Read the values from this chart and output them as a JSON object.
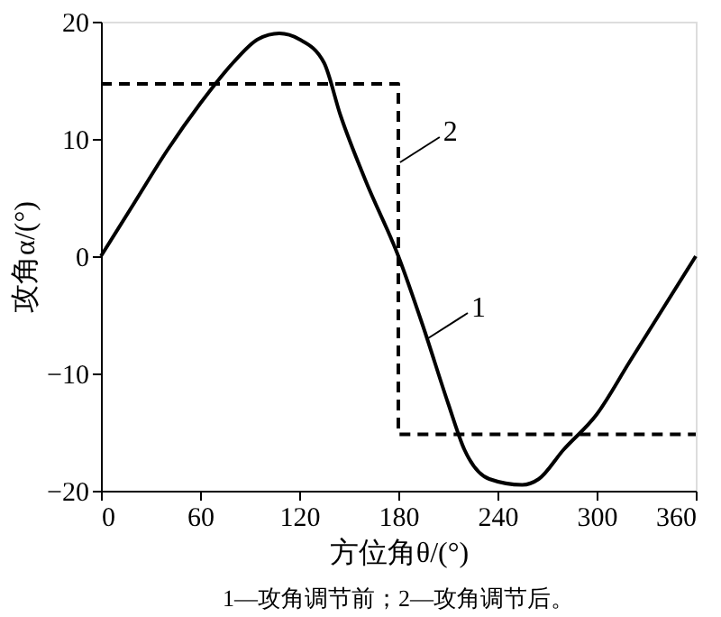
{
  "chart_data": {
    "type": "line",
    "xlabel": "方位角θ/(°)",
    "ylabel": "攻角α/(°)",
    "xlim": [
      0,
      360
    ],
    "xticks": [
      0,
      60,
      120,
      180,
      240,
      300,
      360
    ],
    "ylim": [
      -20,
      20
    ],
    "yticks": [
      -20,
      -10,
      0,
      10,
      20
    ],
    "grid": false,
    "marker": "none",
    "series": [
      {
        "color": "#000000",
        "line_style": "solid",
        "x": [
          0,
          20,
          40,
          60,
          80,
          95,
          108,
          120,
          135,
          145,
          160,
          180,
          195,
          210,
          220,
          235,
          255,
          265,
          280,
          300,
          320,
          340,
          360
        ],
        "values": [
          0,
          4.5,
          9,
          13,
          16.5,
          18.5,
          19,
          18.5,
          16.5,
          12,
          6.5,
          0,
          -6,
          -12.5,
          -16.5,
          -19,
          -19.5,
          -19,
          -16.5,
          -13.5,
          -9,
          -4.5,
          0
        ]
      },
      {
        "color": "#000000",
        "line_style": "dashed",
        "x": [
          0,
          180,
          180,
          360
        ],
        "values": [
          14.7,
          14.7,
          -15.2,
          -15.2
        ]
      }
    ],
    "annotations": [
      {
        "text": "1",
        "x": 198,
        "y": -7
      },
      {
        "text": "2",
        "x": 181,
        "y": 8
      },
      "1—攻角调节前；2—攻角调节后。"
    ]
  }
}
